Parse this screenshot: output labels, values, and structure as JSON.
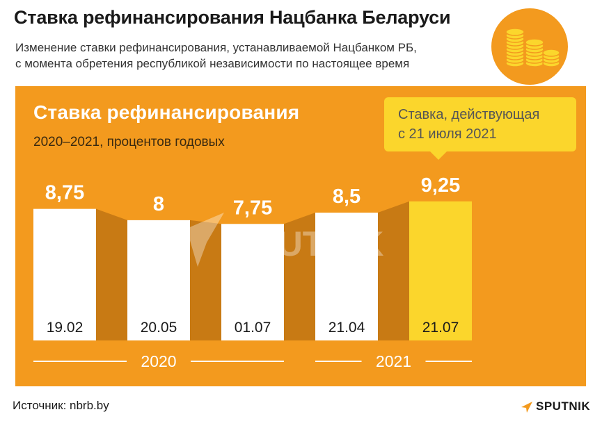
{
  "header": {
    "title": "Ставка рефинансирования Нацбанка Беларуси",
    "subtitle_line1": "Изменение ставки рефинансирования, устанавливаемой Нацбанком РБ,",
    "subtitle_line2": "с момента обретения республикой независимости по настоящее время",
    "icon": "coins-icon"
  },
  "panel": {
    "title": "Ставка рефинансирования",
    "subtitle": "2020–2021, процентов годовых",
    "callout_line1": "Ставка, действующая",
    "callout_line2": "с 21 июля 2021",
    "watermark": "SPUTNIK"
  },
  "colors": {
    "panel_bg": "#f39a1e",
    "bar": "#ffffff",
    "bar_highlight": "#fbd62c",
    "connector": "#c87a14"
  },
  "chart_data": {
    "type": "bar",
    "title": "Ставка рефинансирования",
    "subtitle": "2020–2021, процентов годовых",
    "categories": [
      "19.02",
      "20.05",
      "01.07",
      "21.04",
      "21.07"
    ],
    "values": [
      8.75,
      8,
      7.75,
      8.5,
      9.25
    ],
    "value_labels": [
      "8,75",
      "8",
      "7,75",
      "8,5",
      "9,25"
    ],
    "highlight_index": 4,
    "groups": [
      {
        "label": "2020",
        "from": 0,
        "to": 2
      },
      {
        "label": "2021",
        "from": 3,
        "to": 4
      }
    ],
    "ylim": [
      0,
      9.25
    ]
  },
  "footer": {
    "source": "Источник: nbrb.by",
    "logo": "SPUTNIK"
  }
}
